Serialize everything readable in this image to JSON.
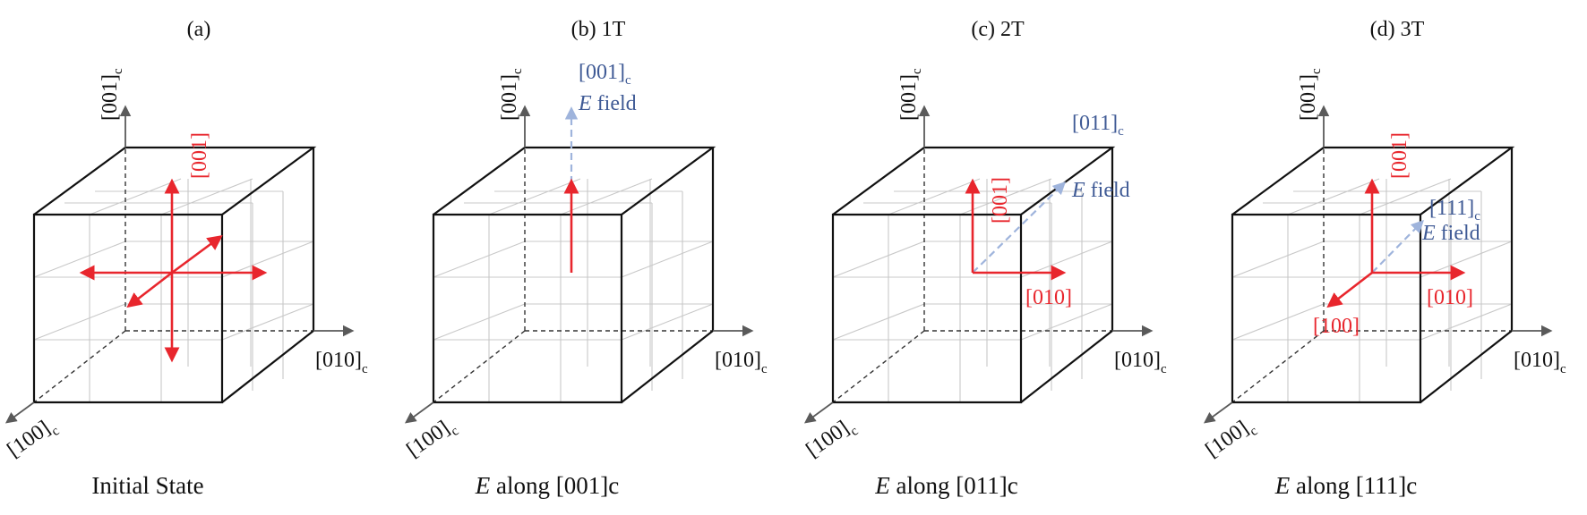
{
  "panels": [
    {
      "id": "a",
      "header": "(a)",
      "caption_lead": "",
      "caption_rest": "Initial State",
      "axis_z": "[001]",
      "axis_y": "[010]",
      "axis_x": "[100]",
      "axis_sub": "c",
      "pol_labels": {
        "z": "[001]",
        "y": "",
        "x": ""
      },
      "field_label": {
        "index": "",
        "sub": "",
        "word": "",
        "letter": ""
      }
    },
    {
      "id": "b",
      "header": "(b) 1T",
      "caption_lead": "E",
      "caption_rest": " along [001]c",
      "axis_z": "[001]",
      "axis_y": "[010]",
      "axis_x": "[100]",
      "axis_sub": "c",
      "pol_labels": {
        "z": "",
        "y": "",
        "x": ""
      },
      "field_label": {
        "index": "[001]",
        "sub": "c",
        "letter": "E",
        "word": " field"
      }
    },
    {
      "id": "c",
      "header": "(c) 2T",
      "caption_lead": "E",
      "caption_rest": " along [011]c",
      "axis_z": "[001]",
      "axis_y": "[010]",
      "axis_x": "[100]",
      "axis_sub": "c",
      "pol_labels": {
        "z": "[001]",
        "y": "[010]",
        "x": ""
      },
      "field_label": {
        "index": "[011]",
        "sub": "c",
        "letter": "E",
        "word": " field"
      }
    },
    {
      "id": "d",
      "header": "(d) 3T",
      "caption_lead": "E",
      "caption_rest": " along [111]c",
      "axis_z": "[001]",
      "axis_y": "[010]",
      "axis_x": "[100]",
      "axis_sub": "c",
      "pol_labels": {
        "z": "[001]",
        "y": "[010]",
        "x": "[100]"
      },
      "field_label": {
        "index": "[111]",
        "sub": "c",
        "letter": "E",
        "word": " field"
      }
    }
  ],
  "colors": {
    "polarization": "#e8262d",
    "field": "#9fb4dc",
    "field_text": "#3f5a95",
    "edges": "#111111",
    "grid": "#c8c8c8",
    "axes": "#5a5a5a"
  }
}
